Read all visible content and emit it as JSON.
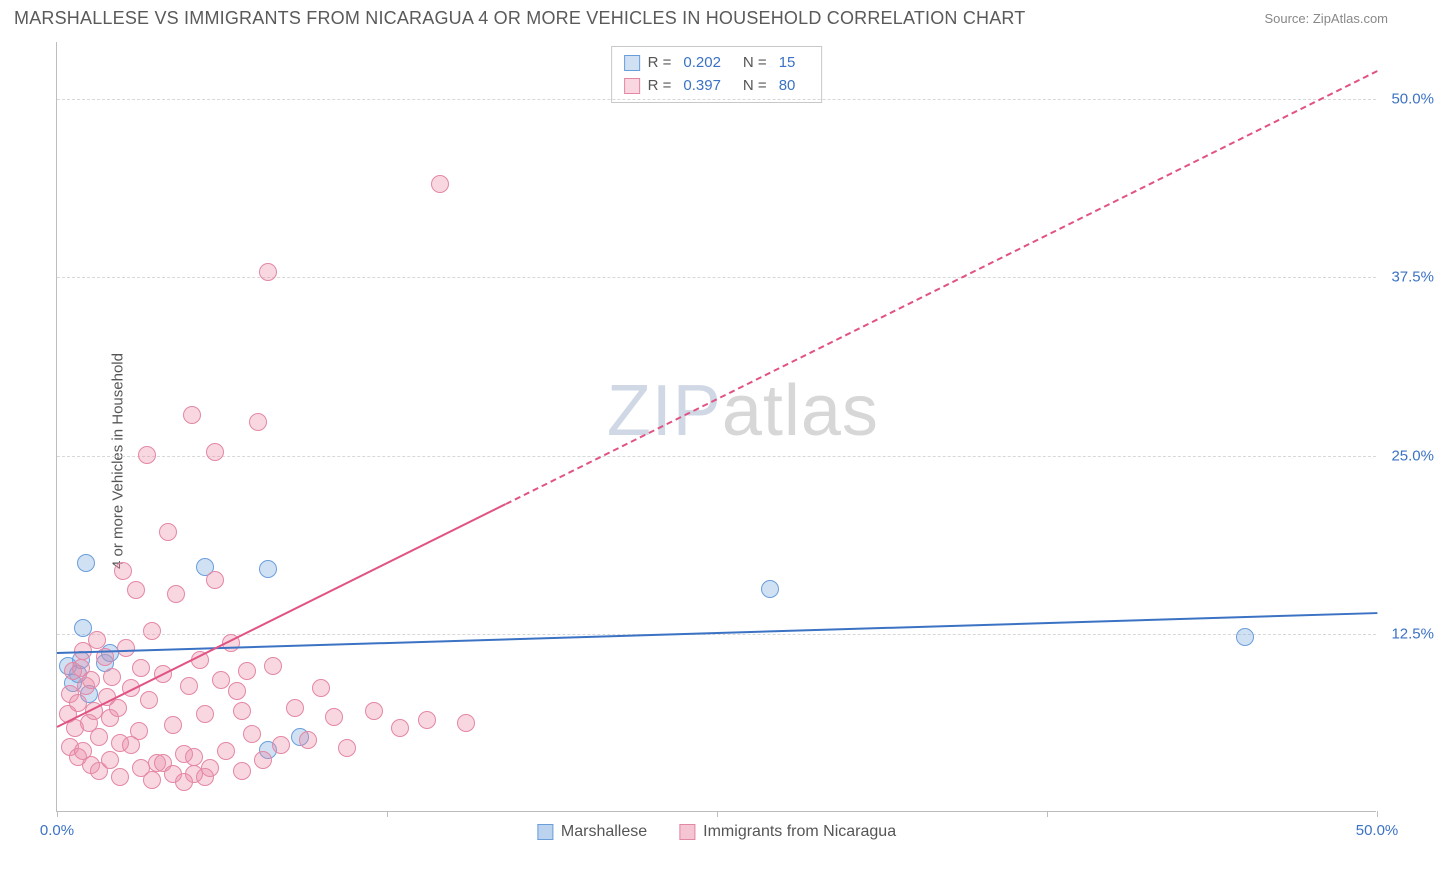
{
  "title": "MARSHALLESE VS IMMIGRANTS FROM NICARAGUA 4 OR MORE VEHICLES IN HOUSEHOLD CORRELATION CHART",
  "source": "Source: ZipAtlas.com",
  "watermark_a": "ZIP",
  "watermark_b": "atlas",
  "ylabel": "4 or more Vehicles in Household",
  "chart": {
    "type": "scatter",
    "xlim": [
      0,
      50
    ],
    "ylim": [
      0,
      54
    ],
    "xticks": [
      0,
      12.5,
      25,
      37.5,
      50
    ],
    "xtick_labels": [
      "0.0%",
      "",
      "",
      "",
      "50.0%"
    ],
    "yticks": [
      12.5,
      25,
      37.5,
      50
    ],
    "ytick_labels": [
      "12.5%",
      "25.0%",
      "37.5%",
      "50.0%"
    ],
    "grid_color": "#d8d8d8",
    "axis_color": "#bdbdbd",
    "background_color": "#ffffff",
    "label_color": "#3b72c4",
    "dot_radius": 9,
    "series": [
      {
        "name": "Marshallese",
        "fill": "rgba(120,168,224,0.35)",
        "stroke": "#6a9edb",
        "r_value": "0.202",
        "n_value": "15",
        "points": [
          [
            0.4,
            10.2
          ],
          [
            0.6,
            9.0
          ],
          [
            0.8,
            9.6
          ],
          [
            1.0,
            12.8
          ],
          [
            1.1,
            17.4
          ],
          [
            1.8,
            10.4
          ],
          [
            5.6,
            17.1
          ],
          [
            8.0,
            17.0
          ],
          [
            8.0,
            4.3
          ],
          [
            9.2,
            5.2
          ],
          [
            27.0,
            15.6
          ],
          [
            45.0,
            12.2
          ],
          [
            1.2,
            8.2
          ],
          [
            0.9,
            10.6
          ],
          [
            2.0,
            11.1
          ]
        ],
        "trend": {
          "x1": 0,
          "y1": 11.2,
          "x2": 50,
          "y2": 14.0,
          "color": "#3b72c4",
          "dash_after": null
        }
      },
      {
        "name": "Immigrants from Nicaragua",
        "fill": "rgba(236,140,168,0.35)",
        "stroke": "#e487a5",
        "r_value": "0.397",
        "n_value": "80",
        "points": [
          [
            0.4,
            6.8
          ],
          [
            0.5,
            8.2
          ],
          [
            0.6,
            9.8
          ],
          [
            0.7,
            5.8
          ],
          [
            0.8,
            7.6
          ],
          [
            0.9,
            10.0
          ],
          [
            1.0,
            11.2
          ],
          [
            1.1,
            8.8
          ],
          [
            1.2,
            6.2
          ],
          [
            1.3,
            9.2
          ],
          [
            1.4,
            7.0
          ],
          [
            1.5,
            12.0
          ],
          [
            1.6,
            5.2
          ],
          [
            1.8,
            10.8
          ],
          [
            1.9,
            8.0
          ],
          [
            2.0,
            6.5
          ],
          [
            2.1,
            9.4
          ],
          [
            2.3,
            7.2
          ],
          [
            2.4,
            4.8
          ],
          [
            2.5,
            16.8
          ],
          [
            2.6,
            11.4
          ],
          [
            2.8,
            8.6
          ],
          [
            3.0,
            15.5
          ],
          [
            3.1,
            5.6
          ],
          [
            3.2,
            10.0
          ],
          [
            3.4,
            25.0
          ],
          [
            3.5,
            7.8
          ],
          [
            3.6,
            12.6
          ],
          [
            3.8,
            3.4
          ],
          [
            4.0,
            9.6
          ],
          [
            4.2,
            19.6
          ],
          [
            4.4,
            6.0
          ],
          [
            4.5,
            15.2
          ],
          [
            4.8,
            4.0
          ],
          [
            5.0,
            8.8
          ],
          [
            5.1,
            27.8
          ],
          [
            5.2,
            2.6
          ],
          [
            5.4,
            10.6
          ],
          [
            5.6,
            6.8
          ],
          [
            5.8,
            3.0
          ],
          [
            6.0,
            25.2
          ],
          [
            6.0,
            16.2
          ],
          [
            6.2,
            9.2
          ],
          [
            6.4,
            4.2
          ],
          [
            6.6,
            11.8
          ],
          [
            6.8,
            8.4
          ],
          [
            7.0,
            7.0
          ],
          [
            7.0,
            2.8
          ],
          [
            7.2,
            9.8
          ],
          [
            7.4,
            5.4
          ],
          [
            7.6,
            27.3
          ],
          [
            7.8,
            3.6
          ],
          [
            8.0,
            37.8
          ],
          [
            8.2,
            10.2
          ],
          [
            8.5,
            4.6
          ],
          [
            9.0,
            7.2
          ],
          [
            9.5,
            5.0
          ],
          [
            10.0,
            8.6
          ],
          [
            10.5,
            6.6
          ],
          [
            11.0,
            4.4
          ],
          [
            12.0,
            7.0
          ],
          [
            13.0,
            5.8
          ],
          [
            14.0,
            6.4
          ],
          [
            14.5,
            44.0
          ],
          [
            15.5,
            6.2
          ],
          [
            0.5,
            4.5
          ],
          [
            0.8,
            3.8
          ],
          [
            1.0,
            4.2
          ],
          [
            1.3,
            3.2
          ],
          [
            1.6,
            2.8
          ],
          [
            2.0,
            3.6
          ],
          [
            2.4,
            2.4
          ],
          [
            2.8,
            4.6
          ],
          [
            3.2,
            3.0
          ],
          [
            3.6,
            2.2
          ],
          [
            4.0,
            3.4
          ],
          [
            4.4,
            2.6
          ],
          [
            4.8,
            2.0
          ],
          [
            5.2,
            3.8
          ],
          [
            5.6,
            2.4
          ]
        ],
        "trend": {
          "x1": 0,
          "y1": 6.0,
          "x2": 50,
          "y2": 52.0,
          "color": "#e15384",
          "dash_after": 17
        }
      }
    ]
  },
  "legend": [
    {
      "label": "Marshallese",
      "fill": "rgba(120,168,224,0.5)",
      "stroke": "#6a9edb"
    },
    {
      "label": "Immigrants from Nicaragua",
      "fill": "rgba(236,140,168,0.5)",
      "stroke": "#e487a5"
    }
  ]
}
